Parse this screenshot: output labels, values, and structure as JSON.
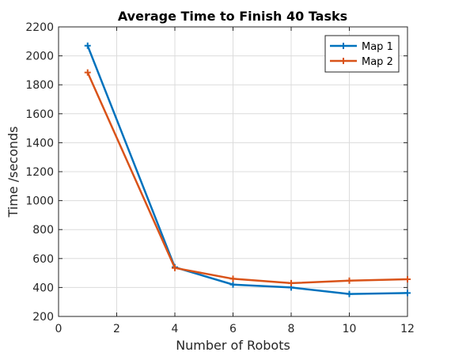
{
  "chart_data": {
    "type": "line",
    "title": "Average Time to Finish 40 Tasks",
    "xlabel": "Number of Robots",
    "ylabel": "Time /seconds",
    "xlim": [
      0,
      12
    ],
    "ylim": [
      200,
      2200
    ],
    "xticks": [
      0,
      2,
      4,
      6,
      8,
      10,
      12
    ],
    "yticks": [
      200,
      400,
      600,
      800,
      1000,
      1200,
      1400,
      1600,
      1800,
      2000,
      2200
    ],
    "grid": true,
    "legend_position": "top-right",
    "x": [
      1,
      4,
      6,
      8,
      10,
      12
    ],
    "series": [
      {
        "name": "Map 1",
        "color": "#0072BD",
        "marker": "plus",
        "values": [
          2070,
          540,
          420,
          400,
          355,
          362
        ]
      },
      {
        "name": "Map 2",
        "color": "#D95319",
        "marker": "plus",
        "values": [
          1885,
          535,
          460,
          430,
          447,
          457
        ]
      }
    ]
  }
}
